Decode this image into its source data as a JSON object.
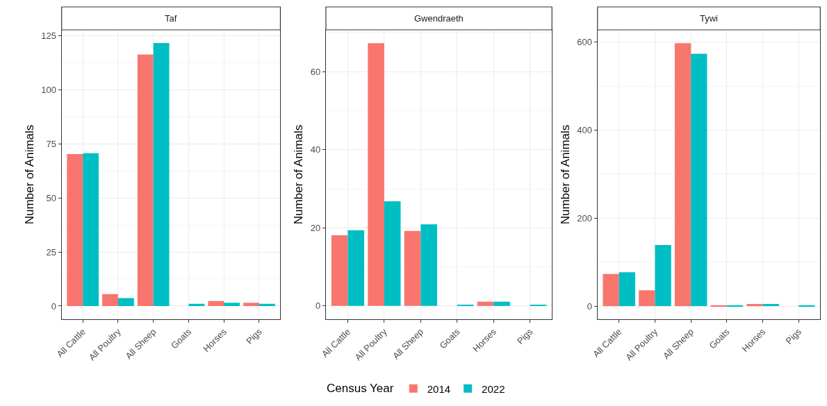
{
  "chart_data": [
    {
      "type": "bar",
      "title": "Taf",
      "ylabel": "Number of Animals",
      "categories": [
        "All Cattle",
        "All Poultry",
        "All Sheep",
        "Goats",
        "Horses",
        "Pigs"
      ],
      "series": [
        {
          "name": "2014",
          "color": "#f8766d",
          "values": [
            70.2,
            5.5,
            116.2,
            null,
            2.3,
            1.5
          ]
        },
        {
          "name": "2022",
          "color": "#00bfc4",
          "values": [
            70.6,
            3.7,
            121.5,
            1.0,
            1.5,
            1.0
          ]
        }
      ],
      "ylim": [
        -6.1,
        127.6
      ],
      "yticks": [
        0,
        25,
        50,
        75,
        100,
        125
      ],
      "grid": true,
      "legend": "bottom",
      "legend_title": "Census Year"
    },
    {
      "type": "bar",
      "title": "Gwendraeth",
      "ylabel": "Number of Animals",
      "categories": [
        "All Cattle",
        "All Poultry",
        "All Sheep",
        "Goats",
        "Horses",
        "Pigs"
      ],
      "series": [
        {
          "name": "2014",
          "color": "#f8766d",
          "values": [
            18.1,
            67.3,
            19.2,
            null,
            1.1,
            null
          ]
        },
        {
          "name": "2022",
          "color": "#00bfc4",
          "values": [
            19.4,
            26.8,
            20.9,
            0.3,
            1.1,
            0.3
          ]
        }
      ],
      "ylim": [
        -3.4,
        70.7
      ],
      "yticks": [
        0,
        20,
        40,
        60
      ],
      "grid": true
    },
    {
      "type": "bar",
      "title": "Tywi",
      "ylabel": "Number of Animals",
      "categories": [
        "All Cattle",
        "All Poultry",
        "All Sheep",
        "Goats",
        "Horses",
        "Pigs"
      ],
      "series": [
        {
          "name": "2014",
          "color": "#f8766d",
          "values": [
            73,
            36,
            598,
            2,
            5,
            null
          ]
        },
        {
          "name": "2022",
          "color": "#00bfc4",
          "values": [
            77,
            139,
            574,
            2,
            5,
            2
          ]
        }
      ],
      "ylim": [
        -29.9,
        628.3
      ],
      "yticks": [
        0,
        200,
        400,
        600
      ],
      "grid": true
    }
  ]
}
